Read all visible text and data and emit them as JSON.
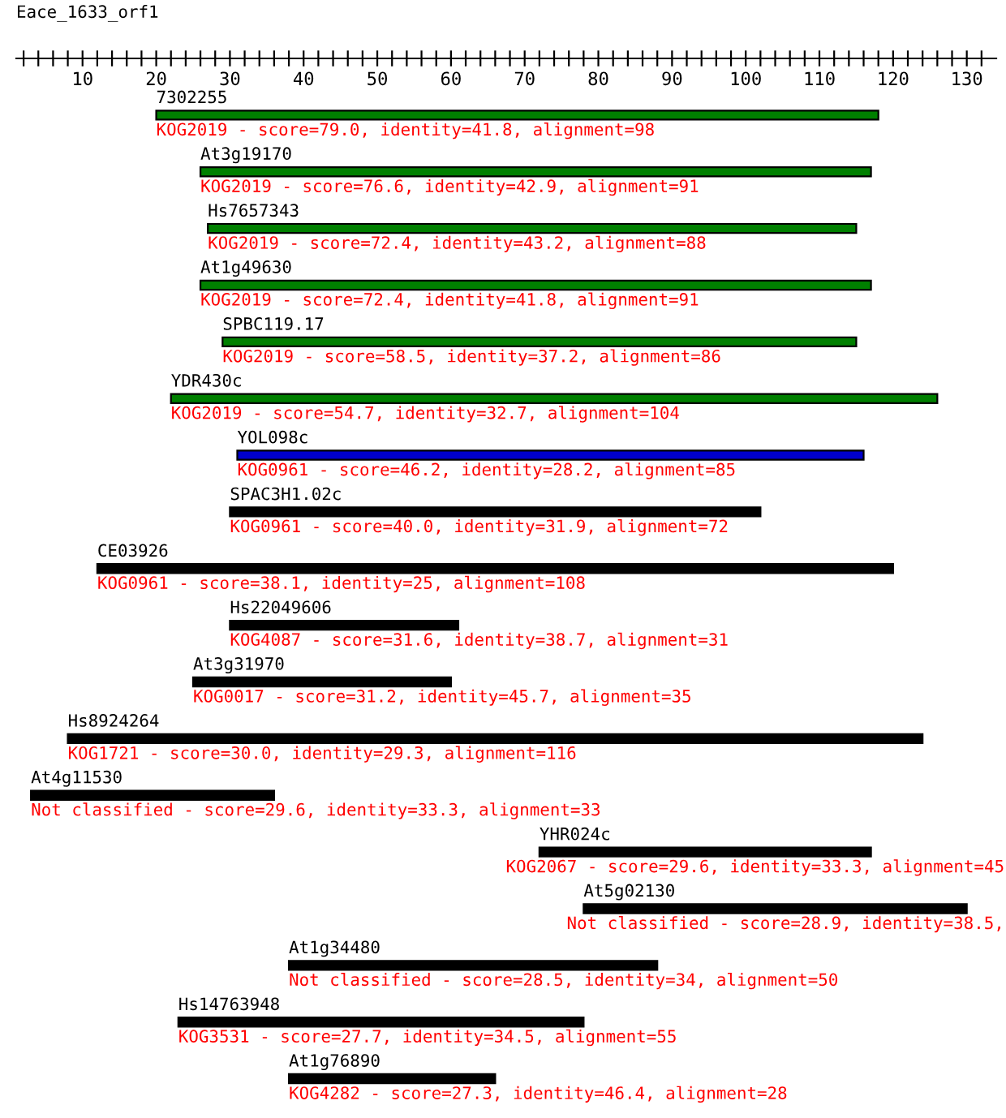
{
  "chart_data": {
    "type": "bar",
    "orientation": "horizontal",
    "title": "Eace_1633_orf1",
    "categories": [
      "7302255",
      "At3g19170",
      "Hs7657343",
      "At1g49630",
      "SPBC119.17",
      "YDR430c",
      "YOL098c",
      "SPAC3H1.02c",
      "CE03926",
      "Hs22049606",
      "At3g31970",
      "Hs8924264",
      "At4g11530",
      "YHR024c",
      "At5g02130",
      "At1g34480",
      "Hs14763948",
      "At1g76890"
    ],
    "base": [
      20,
      26,
      27,
      26,
      29,
      22,
      31,
      30,
      12,
      30,
      25,
      8,
      3,
      72,
      78,
      38,
      23,
      38
    ],
    "values": [
      98,
      91,
      88,
      91,
      86,
      104,
      85,
      72,
      108,
      31,
      35,
      116,
      33,
      45,
      52,
      50,
      55,
      28
    ],
    "colors": [
      "#008000",
      "#008000",
      "#008000",
      "#008000",
      "#008000",
      "#008000",
      "#0000cc",
      "#000000",
      "#000000",
      "#000000",
      "#000000",
      "#000000",
      "#000000",
      "#000000",
      "#000000",
      "#000000",
      "#000000",
      "#000000"
    ],
    "value_labels": [
      "KOG2019 - score=79.0, identity=41.8, alignment=98",
      "KOG2019 - score=76.6, identity=42.9, alignment=91",
      "KOG2019 - score=72.4, identity=43.2, alignment=88",
      "KOG2019 - score=72.4, identity=41.8, alignment=91",
      "KOG2019 - score=58.5, identity=37.2, alignment=86",
      "KOG2019 - score=54.7, identity=32.7, alignment=104",
      "KOG0961 - score=46.2, identity=28.2, alignment=85",
      "KOG0961 - score=40.0, identity=31.9, alignment=72",
      "KOG0961 - score=38.1, identity=25, alignment=108",
      "KOG4087 - score=31.6, identity=38.7, alignment=31",
      "KOG0017 - score=31.2, identity=45.7, alignment=35",
      "KOG1721 - score=30.0, identity=29.3, alignment=116",
      "Not classified - score=29.6, identity=33.3, alignment=33",
      "KOG2067 - score=29.6, identity=33.3, alignment=45",
      "Not classified - score=28.9, identity=38.5,",
      "Not classified - score=28.5, identity=34, alignment=50",
      "KOG3531 - score=27.7, identity=34.5, alignment=55",
      "KOG4282 - score=27.3, identity=46.4, alignment=28"
    ],
    "xlim": [
      1,
      134
    ],
    "xticks": [
      {
        "value": 2,
        "label": null
      },
      {
        "value": 4,
        "label": null
      },
      {
        "value": 6,
        "label": null
      },
      {
        "value": 8,
        "label": null
      },
      10,
      {
        "value": 12,
        "label": null
      },
      {
        "value": 14,
        "label": null
      },
      {
        "value": 16,
        "label": null
      },
      {
        "value": 18,
        "label": null
      },
      20,
      {
        "value": 22,
        "label": null
      },
      {
        "value": 24,
        "label": null
      },
      {
        "value": 26,
        "label": null
      },
      {
        "value": 28,
        "label": null
      },
      30,
      {
        "value": 32,
        "label": null
      },
      {
        "value": 34,
        "label": null
      },
      {
        "value": 36,
        "label": null
      },
      {
        "value": 38,
        "label": null
      },
      40,
      {
        "value": 42,
        "label": null
      },
      {
        "value": 44,
        "label": null
      },
      {
        "value": 46,
        "label": null
      },
      {
        "value": 48,
        "label": null
      },
      50,
      {
        "value": 52,
        "label": null
      },
      {
        "value": 54,
        "label": null
      },
      {
        "value": 56,
        "label": null
      },
      {
        "value": 58,
        "label": null
      },
      60,
      {
        "value": 62,
        "label": null
      },
      {
        "value": 64,
        "label": null
      },
      {
        "value": 66,
        "label": null
      },
      {
        "value": 68,
        "label": null
      },
      70,
      {
        "value": 72,
        "label": null
      },
      {
        "value": 74,
        "label": null
      },
      {
        "value": 76,
        "label": null
      },
      {
        "value": 78,
        "label": null
      },
      80,
      {
        "value": 82,
        "label": null
      },
      {
        "value": 84,
        "label": null
      },
      {
        "value": 86,
        "label": null
      },
      {
        "value": 88,
        "label": null
      },
      90,
      {
        "value": 92,
        "label": null
      },
      {
        "value": 94,
        "label": null
      },
      {
        "value": 96,
        "label": null
      },
      {
        "value": 98,
        "label": null
      },
      100,
      {
        "value": 102,
        "label": null
      },
      {
        "value": 104,
        "label": null
      },
      {
        "value": 106,
        "label": null
      },
      {
        "value": 108,
        "label": null
      },
      110,
      {
        "value": 112,
        "label": null
      },
      {
        "value": 114,
        "label": null
      },
      {
        "value": 116,
        "label": null
      },
      {
        "value": 118,
        "label": null
      },
      120,
      {
        "value": 122,
        "label": null
      },
      {
        "value": 124,
        "label": null
      },
      {
        "value": 126,
        "label": null
      },
      {
        "value": 128,
        "label": null
      },
      130,
      {
        "value": 132,
        "label": null
      }
    ],
    "grid": false,
    "legend": false
  }
}
